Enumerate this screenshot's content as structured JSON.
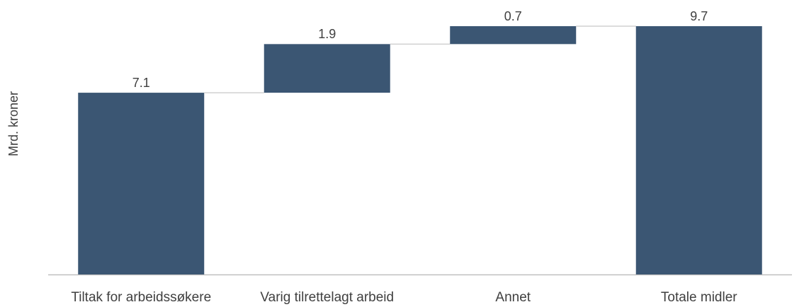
{
  "chart_data": {
    "type": "waterfall",
    "y_label": "Mrd. kroner",
    "categories": [
      "Tiltak for arbeidssøkere",
      "Varig tilrettelagt arbeid",
      "Annet",
      "Totale midler"
    ],
    "values": [
      7.1,
      1.9,
      0.7,
      9.7
    ],
    "color": "#3b5673",
    "ylim": [
      0,
      9.7
    ]
  }
}
